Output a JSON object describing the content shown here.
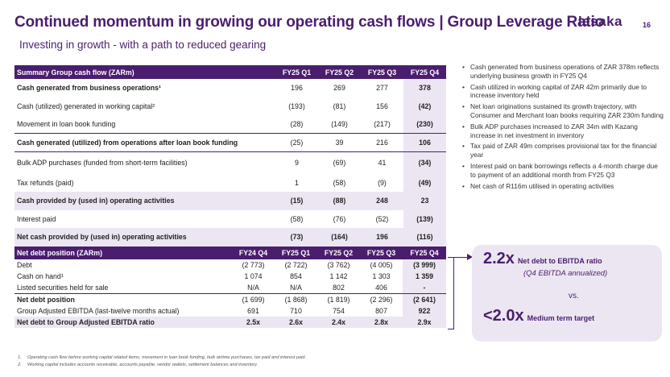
{
  "header": {
    "title": "Continued momentum in growing our operating cash flows | Group Leverage Ratio",
    "subtitle": "Investing in growth - with a path to reduced gearing",
    "logo": "LESAKA",
    "page_number": "16"
  },
  "cash_flow": {
    "columns": [
      "Summary Group cash flow (ZARm)",
      "FY25 Q1",
      "FY25 Q2",
      "FY25 Q3",
      "FY25 Q4"
    ],
    "rows": [
      {
        "label": "Cash generated from business operations¹",
        "values": [
          "196",
          "269",
          "277",
          "378"
        ]
      },
      {
        "label": "Cash (utilized) generated in working capital²",
        "values": [
          "(193)",
          "(81)",
          "156",
          "(42)"
        ]
      },
      {
        "label": "Movement in loan book funding",
        "values": [
          "(28)",
          "(149)",
          "(217)",
          "(230)"
        ]
      },
      {
        "label": "Cash generated (utilized) from operations after loan book funding",
        "values": [
          "(25)",
          "39",
          "216",
          "106"
        ]
      },
      {
        "label": "Bulk ADP purchases (funded from short-term facilities)",
        "values": [
          "9",
          "(69)",
          "41",
          "(34)"
        ]
      },
      {
        "label": "Tax refunds (paid)",
        "values": [
          "1",
          "(58)",
          "(9)",
          "(49)"
        ]
      },
      {
        "label": "Cash provided by (used in) operating activities",
        "values": [
          "(15)",
          "(88)",
          "248",
          "23"
        ]
      },
      {
        "label": "Interest paid",
        "values": [
          "(58)",
          "(76)",
          "(52)",
          "(139)"
        ]
      },
      {
        "label": "Net cash provided by (used in) operating activities",
        "values": [
          "(73)",
          "(164)",
          "196",
          "(116)"
        ]
      }
    ]
  },
  "net_debt": {
    "columns": [
      "Net debt position (ZARm)",
      "FY24 Q4",
      "FY25 Q1",
      "FY25 Q2",
      "FY25 Q3",
      "FY25 Q4"
    ],
    "rows": [
      {
        "label": "Debt",
        "values": [
          "(2 773)",
          "(2 722)",
          "(3 762)",
          "(4 005)",
          "(3 999)"
        ]
      },
      {
        "label": "Cash on hand¹",
        "values": [
          "1 074",
          "854",
          "1 142",
          "1 303",
          "1 359"
        ]
      },
      {
        "label": "Listed securities held for sale",
        "values": [
          "N/A",
          "N/A",
          "802",
          "406",
          "-"
        ]
      },
      {
        "label": "Net debt position",
        "values": [
          "(1 699)",
          "(1 868)",
          "(1 819)",
          "(2 296)",
          "(2 641)"
        ]
      },
      {
        "label": "Group Adjusted EBITDA (last-twelve months actual)",
        "values": [
          "691",
          "710",
          "754",
          "807",
          "922"
        ]
      },
      {
        "label": "Net debt to Group Adjusted EBITDA ratio",
        "values": [
          "2.5x",
          "2.6x",
          "2.4x",
          "2.8x",
          "2.9x"
        ]
      }
    ]
  },
  "commentary": [
    "Cash generated from business operations of ZAR 378m reflects underlying business growth in FY25 Q4",
    "Cash utilized in working capital of ZAR 42m primarily due to increase inventory held",
    "Net loan originations sustained its growth trajectory, with Consumer and Merchant loan books requiring ZAR 230m funding",
    "Bulk ADP purchases increased to ZAR 34m with Kazang increase in net investment in inventory",
    "Tax paid of ZAR 49m comprises provisional tax for the financial year",
    "Interest paid on bank borrowings reflects a 4-month charge due to payment of an additional month from FY25 Q3",
    "Net cash of R116m utilised in operating activities"
  ],
  "leverage": {
    "current_value": "2.2x",
    "current_label": "Net debt to EBITDA ratio",
    "current_note": "(Q4 EBITDA annualized)",
    "vs": "vs.",
    "target_value": "<2.0x",
    "target_label": "Medium term target"
  },
  "footnotes": [
    {
      "num": "1.",
      "text": "Operating cash flow before working capital related items, movement in loan book funding, bulk airtime purchases, tax paid and interest paid."
    },
    {
      "num": "2.",
      "text": "Working capital includes accounts receivable, accounts payable, vendor wallets, settlement balances and inventory."
    }
  ],
  "colors": {
    "brand_purple": "#4a1e6e",
    "highlight": "#ece6f2"
  }
}
